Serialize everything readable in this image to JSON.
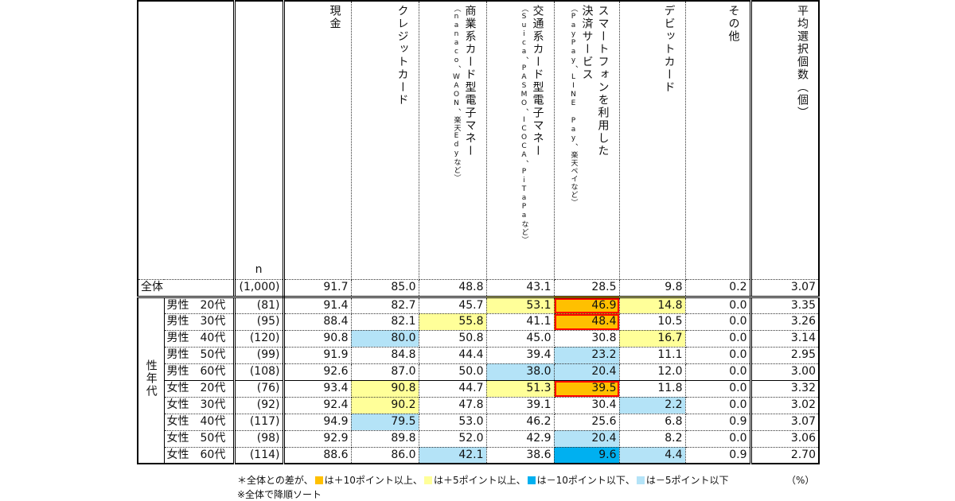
{
  "header": {
    "n_label": "n",
    "group_label": "性年代",
    "columns": [
      {
        "main": [
          "現金"
        ],
        "sub": ""
      },
      {
        "main": [
          "クレジットカード"
        ],
        "sub": ""
      },
      {
        "main": [
          "商業系カード型電子マネー"
        ],
        "sub": "（nanaco、WAON、楽天Edyなど）"
      },
      {
        "main": [
          "交通系カード型電子マネー"
        ],
        "sub": "（Suica、PASMO、ICOCA、PiTaPaなど）"
      },
      {
        "main": [
          "スマートフォンを利用した",
          "決済サービス"
        ],
        "sub": "（PayPay、LINE Pay、楽天ペイなど）"
      },
      {
        "main": [
          "デビットカード"
        ],
        "sub": ""
      },
      {
        "main": [
          "その他"
        ],
        "sub": ""
      },
      {
        "main": [
          "平均選択個数（個）"
        ],
        "sub": ""
      }
    ]
  },
  "total": {
    "label": "全体",
    "n": "(1,000)",
    "values": [
      "91.7",
      "85.0",
      "48.8",
      "43.1",
      "28.5",
      "9.8",
      "0.2",
      "3.07"
    ]
  },
  "rows": [
    {
      "label": "男性　20代",
      "n": "(81)",
      "values": [
        "91.4",
        "82.7",
        "45.7",
        "53.1",
        "46.9",
        "14.8",
        "0.0",
        "3.35"
      ],
      "hl": [
        "",
        "",
        "",
        "y",
        "o",
        "y",
        "",
        ""
      ]
    },
    {
      "label": "男性　30代",
      "n": "(95)",
      "values": [
        "88.4",
        "82.1",
        "55.8",
        "41.1",
        "48.4",
        "10.5",
        "0.0",
        "3.26"
      ],
      "hl": [
        "",
        "",
        "y",
        "",
        "o",
        "",
        "",
        ""
      ]
    },
    {
      "label": "男性　40代",
      "n": "(120)",
      "values": [
        "90.8",
        "80.0",
        "50.8",
        "45.0",
        "30.8",
        "16.7",
        "0.0",
        "3.14"
      ],
      "hl": [
        "",
        "lb",
        "",
        "",
        "",
        "y",
        "",
        ""
      ]
    },
    {
      "label": "男性　50代",
      "n": "(99)",
      "values": [
        "91.9",
        "84.8",
        "44.4",
        "39.4",
        "23.2",
        "11.1",
        "0.0",
        "2.95"
      ],
      "hl": [
        "",
        "",
        "",
        "",
        "lb",
        "",
        "",
        ""
      ]
    },
    {
      "label": "男性　60代",
      "n": "(108)",
      "values": [
        "92.6",
        "87.0",
        "50.0",
        "38.0",
        "20.4",
        "12.0",
        "0.0",
        "3.00"
      ],
      "hl": [
        "",
        "",
        "",
        "lb",
        "lb",
        "",
        "",
        ""
      ]
    },
    {
      "label": "女性　20代",
      "n": "(76)",
      "values": [
        "93.4",
        "90.8",
        "44.7",
        "51.3",
        "39.5",
        "11.8",
        "0.0",
        "3.32"
      ],
      "hl": [
        "",
        "y",
        "",
        "y",
        "o",
        "",
        "",
        ""
      ]
    },
    {
      "label": "女性　30代",
      "n": "(92)",
      "values": [
        "92.4",
        "90.2",
        "47.8",
        "39.1",
        "30.4",
        "2.2",
        "0.0",
        "3.02"
      ],
      "hl": [
        "",
        "y",
        "",
        "",
        "",
        "lb",
        "",
        ""
      ]
    },
    {
      "label": "女性　40代",
      "n": "(117)",
      "values": [
        "94.9",
        "79.5",
        "53.0",
        "46.2",
        "25.6",
        "6.8",
        "0.9",
        "3.07"
      ],
      "hl": [
        "",
        "lb",
        "",
        "",
        "",
        "",
        "",
        ""
      ]
    },
    {
      "label": "女性　50代",
      "n": "(98)",
      "values": [
        "92.9",
        "89.8",
        "52.0",
        "42.9",
        "20.4",
        "8.2",
        "0.0",
        "3.06"
      ],
      "hl": [
        "",
        "",
        "",
        "",
        "lb",
        "",
        "",
        ""
      ]
    },
    {
      "label": "女性　60代",
      "n": "(114)",
      "values": [
        "88.6",
        "86.0",
        "42.1",
        "38.6",
        "9.6",
        "4.4",
        "0.9",
        "2.70"
      ],
      "hl": [
        "",
        "",
        "lb",
        "",
        "b",
        "lb",
        "",
        ""
      ]
    }
  ],
  "legend": {
    "prefix": "＊全体との差が、",
    "items": [
      {
        "code": "o",
        "color": "#FFC000",
        "text": "は＋10ポイント以上、"
      },
      {
        "code": "y",
        "color": "#FFFF99",
        "text": "は＋5ポイント以上、"
      },
      {
        "code": "b",
        "color": "#00B0F0",
        "text": "は－10ポイント以下、"
      },
      {
        "code": "lb",
        "color": "#B4E3F7",
        "text": "は－5ポイント以下"
      }
    ],
    "unit": "（%）",
    "note": "※全体で降順ソート"
  },
  "chart_data": {
    "type": "table",
    "columns": [
      "現金",
      "クレジットカード",
      "商業系カード型電子マネー（nanaco、WAON、楽天Edyなど）",
      "交通系カード型電子マネー（Suica、PASMO、ICOCA、PiTaPaなど）",
      "スマートフォンを利用した決済サービス（PayPay、LINE Pay、楽天ペイなど）",
      "デビットカード",
      "その他",
      "平均選択個数（個）"
    ],
    "unit": "%"
  }
}
